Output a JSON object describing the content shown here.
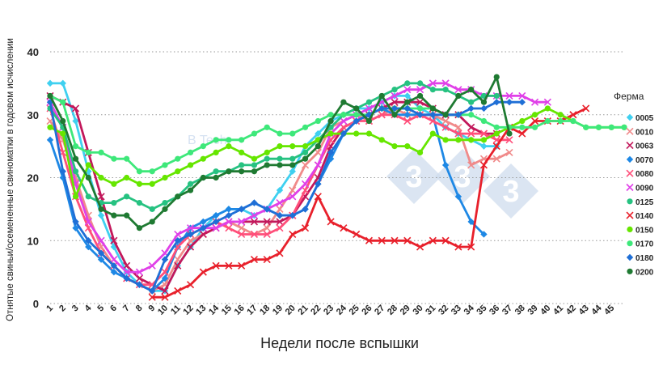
{
  "chart_data": {
    "type": "line",
    "title": "",
    "xlabel": "Недели после вспышки",
    "ylabel": "Отнятые свиньи/осемененные свиноматки в годовом исчислении",
    "x": [
      1,
      2,
      3,
      4,
      5,
      6,
      7,
      8,
      9,
      10,
      11,
      12,
      13,
      14,
      15,
      16,
      17,
      18,
      19,
      20,
      21,
      22,
      23,
      24,
      25,
      26,
      27,
      28,
      29,
      30,
      31,
      32,
      33,
      34,
      35,
      36,
      37,
      38,
      39,
      40,
      41,
      42,
      43,
      44,
      45,
      46
    ],
    "x_tick_labels": [
      "1",
      "2",
      "3",
      "4",
      "5",
      "6",
      "7",
      "8",
      "9",
      "10",
      "11",
      "12",
      "13",
      "14",
      "15",
      "16",
      "17",
      "18",
      "19",
      "20",
      "21",
      "22",
      "23",
      "24",
      "25",
      "26",
      "27",
      "28",
      "29",
      "30",
      "31",
      "32",
      "33",
      "34",
      "35",
      "36",
      "37",
      "38",
      "39",
      "40",
      "41",
      "42",
      "43",
      "44",
      "45"
    ],
    "ylim": [
      0,
      40
    ],
    "y_ticks": [
      0,
      10,
      20,
      30,
      40
    ],
    "grid": "horizontal-dotted",
    "legend": {
      "title": "Ферма",
      "position": "right"
    },
    "series": [
      {
        "name": "0005",
        "color": "#3fd0f0",
        "marker": "diamond",
        "values": [
          35,
          35,
          29,
          21,
          14,
          9,
          5,
          3,
          2,
          2,
          6,
          9,
          12,
          14,
          15,
          15,
          14,
          15,
          18,
          21,
          25,
          27,
          29,
          30,
          31,
          31,
          32,
          33,
          33,
          31,
          30,
          28,
          27,
          26,
          25,
          25,
          null,
          null,
          null,
          null,
          null,
          null,
          null,
          null,
          null,
          null
        ]
      },
      {
        "name": "0010",
        "color": "#f08a8a",
        "marker": "x",
        "values": [
          29,
          26,
          20,
          14,
          9,
          6,
          4,
          3,
          2,
          3,
          7,
          10,
          11,
          12,
          13,
          12,
          11,
          12,
          15,
          18,
          22,
          24,
          28,
          29,
          30,
          29,
          30,
          31,
          30,
          30,
          30,
          29,
          28,
          22,
          23,
          23,
          24,
          null,
          null,
          null,
          null,
          null,
          null,
          null,
          null,
          null
        ]
      },
      {
        "name": "0063",
        "color": "#c2185b",
        "marker": "x",
        "values": [
          33,
          32,
          31,
          24,
          17,
          10,
          6,
          4,
          3,
          2,
          6,
          9,
          11,
          12,
          13,
          13,
          13,
          13,
          13,
          14,
          17,
          20,
          25,
          28,
          29,
          30,
          31,
          32,
          32,
          32,
          31,
          30,
          30,
          28,
          27,
          27,
          null,
          null,
          null,
          null,
          null,
          null,
          null,
          null,
          null,
          null
        ]
      },
      {
        "name": "0070",
        "color": "#1e88e5",
        "marker": "diamond",
        "values": [
          26,
          20,
          12,
          9,
          7,
          5,
          4,
          3,
          2,
          4,
          9,
          12,
          13,
          14,
          15,
          15,
          16,
          15,
          14,
          14,
          15,
          19,
          23,
          27,
          29,
          30,
          31,
          30,
          30,
          30,
          30,
          22,
          17,
          13,
          11,
          null,
          null,
          null,
          null,
          null,
          null,
          null,
          null,
          null,
          null,
          null
        ]
      },
      {
        "name": "0080",
        "color": "#ff4f7a",
        "marker": "x",
        "values": [
          31,
          24,
          17,
          12,
          8,
          6,
          4,
          3,
          3,
          5,
          9,
          11,
          12,
          13,
          12,
          11,
          11,
          11,
          12,
          14,
          18,
          22,
          26,
          28,
          29,
          29,
          30,
          30,
          29,
          30,
          29,
          28,
          27,
          27,
          27,
          26,
          26,
          null,
          null,
          null,
          null,
          null,
          null,
          null,
          null,
          null
        ]
      },
      {
        "name": "0090",
        "color": "#e040e8",
        "marker": "x",
        "values": [
          32,
          28,
          19,
          13,
          10,
          7,
          5,
          5,
          6,
          8,
          11,
          12,
          12,
          12,
          13,
          13,
          14,
          15,
          16,
          17,
          19,
          22,
          27,
          29,
          30,
          31,
          32,
          33,
          34,
          34,
          35,
          35,
          34,
          34,
          33,
          33,
          33,
          33,
          32,
          32,
          null,
          null,
          null,
          null,
          null,
          null
        ]
      },
      {
        "name": "0125",
        "color": "#26c281",
        "marker": "circle",
        "values": [
          31,
          28,
          21,
          17,
          16,
          16,
          17,
          16,
          15,
          16,
          17,
          19,
          20,
          21,
          21,
          22,
          22,
          23,
          23,
          23,
          24,
          26,
          28,
          30,
          31,
          32,
          33,
          34,
          35,
          35,
          34,
          34,
          33,
          32,
          33,
          33,
          null,
          null,
          null,
          null,
          null,
          null,
          null,
          null,
          null,
          null
        ]
      },
      {
        "name": "0140",
        "color": "#e8202b",
        "marker": "x",
        "values": [
          null,
          null,
          null,
          null,
          null,
          null,
          null,
          null,
          1,
          1,
          2,
          3,
          5,
          6,
          6,
          6,
          7,
          7,
          8,
          11,
          12,
          17,
          13,
          12,
          11,
          10,
          10,
          10,
          10,
          9,
          10,
          10,
          9,
          9,
          22,
          25,
          28,
          27,
          29,
          29,
          29,
          30,
          31,
          null,
          null,
          null
        ]
      },
      {
        "name": "0150",
        "color": "#66e600",
        "marker": "circle",
        "values": [
          28,
          27,
          17,
          22,
          20,
          19,
          20,
          19,
          19,
          20,
          21,
          22,
          23,
          24,
          25,
          24,
          23,
          24,
          25,
          25,
          25,
          26,
          27,
          27,
          27,
          27,
          26,
          25,
          25,
          24,
          27,
          26,
          26,
          26,
          26,
          27,
          28,
          29,
          30,
          31,
          30,
          29,
          28,
          28,
          28,
          28
        ]
      },
      {
        "name": "0170",
        "color": "#3ee87a",
        "marker": "circle",
        "values": [
          33,
          32,
          25,
          24,
          24,
          23,
          23,
          21,
          21,
          22,
          23,
          24,
          25,
          26,
          26,
          26,
          27,
          28,
          27,
          27,
          28,
          29,
          30,
          30,
          30,
          30,
          31,
          31,
          31,
          31,
          31,
          30,
          30,
          30,
          29,
          28,
          28,
          28,
          28,
          29,
          29,
          29,
          28,
          28,
          28,
          28
        ]
      },
      {
        "name": "0180",
        "color": "#1f6fd6",
        "marker": "diamond",
        "values": [
          32,
          21,
          13,
          10,
          8,
          6,
          4,
          3,
          2,
          7,
          10,
          11,
          12,
          13,
          14,
          15,
          16,
          15,
          14,
          14,
          15,
          19,
          24,
          27,
          29,
          30,
          31,
          31,
          31,
          30,
          30,
          30,
          30,
          31,
          31,
          32,
          32,
          32,
          null,
          null,
          null,
          null,
          null,
          null,
          null,
          null
        ]
      },
      {
        "name": "0200",
        "color": "#1f7a32",
        "marker": "circle",
        "values": [
          33,
          29,
          23,
          20,
          15,
          14,
          14,
          12,
          13,
          15,
          17,
          18,
          20,
          20,
          21,
          21,
          21,
          22,
          22,
          22,
          23,
          25,
          29,
          32,
          31,
          29,
          33,
          30,
          32,
          33,
          31,
          30,
          33,
          34,
          32,
          36,
          27,
          null,
          null,
          null,
          null,
          null,
          null,
          null,
          null,
          null
        ]
      }
    ]
  },
  "watermark": {
    "text": "B Tech",
    "letters": [
      "3",
      "3",
      "3"
    ]
  }
}
